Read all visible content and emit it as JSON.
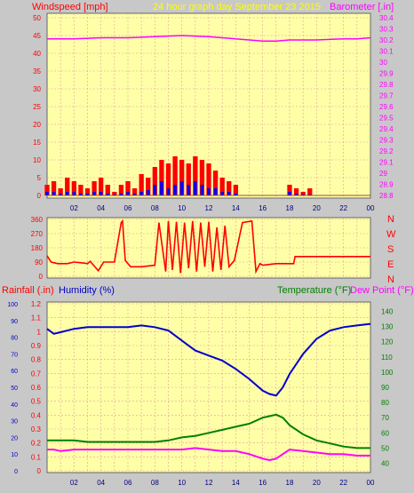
{
  "header": {
    "windspeed_label": "Windspeed [mph]",
    "title": "24 hour graph day   September 23 2015",
    "barometer_label": "Barometer [.in]"
  },
  "compass": [
    "N",
    "W",
    "S",
    "E",
    "N"
  ],
  "lower_header": {
    "rainfall_label": "Rainfall (.in)",
    "humidity_label": "Humidity (%)",
    "temperature_label": "Temperature (°F)",
    "dewpoint_label": "Dew Point (°F)"
  },
  "colors": {
    "background": "#c8c8c8",
    "plot_bg": "#ffffa8",
    "grid": "#e0a0a0",
    "wind": "#ff0000",
    "gust_avg": "#0000ff",
    "barometer": "#ff00ff",
    "humidity": "#0000cc",
    "temperature": "#008000",
    "dewpoint": "#ff00ff",
    "title": "#ffff00"
  },
  "chart_data": [
    {
      "type": "bar",
      "name": "wind",
      "x_ticks": [
        "02",
        "04",
        "06",
        "08",
        "10",
        "12",
        "14",
        "16",
        "18",
        "20",
        "22",
        "00"
      ],
      "y_ticks_left": [
        "0",
        "5",
        "10",
        "15",
        "20",
        "25",
        "30",
        "35",
        "40",
        "45",
        "50"
      ],
      "y_ticks_right": [
        "28.8",
        "28.9",
        "29",
        "29.1",
        "29.2",
        "29.3",
        "29.4",
        "29.5",
        "29.6",
        "29.7",
        "29.8",
        "29.9",
        "30",
        "30.1",
        "30.2",
        "30.3",
        "30.4"
      ],
      "ylim_left": [
        0,
        50
      ],
      "ylim_right": [
        28.8,
        30.4
      ],
      "series": [
        {
          "values_hour": [
            0,
            0.5,
            1,
            1.5,
            2,
            2.5,
            3,
            3.5,
            4,
            4.5,
            5,
            5.5,
            6,
            6.5,
            7,
            7.5,
            8,
            8.5,
            9,
            9.5,
            10,
            10.5,
            11,
            11.5,
            12,
            12.5,
            13,
            13.5,
            14,
            14.5,
            15,
            15.5,
            16,
            16.5,
            17,
            17.5,
            18,
            18.5,
            19,
            19.5,
            20,
            20.5,
            21,
            21.5,
            22,
            22.5,
            23,
            23.5,
            24
          ],
          "values": [
            3,
            4,
            2,
            5,
            4,
            3,
            2,
            4,
            5,
            3,
            1,
            3,
            4,
            2,
            6,
            5,
            8,
            10,
            9,
            11,
            10,
            9,
            11,
            10,
            9,
            7,
            5,
            4,
            3,
            0,
            0,
            0,
            0,
            0,
            0,
            0,
            3,
            2,
            1,
            2,
            0,
            0,
            0,
            0,
            0,
            0,
            0,
            0,
            0
          ]
        },
        {
          "values_hour": [
            0,
            0.5,
            1,
            1.5,
            2,
            2.5,
            3,
            3.5,
            4,
            4.5,
            5,
            5.5,
            6,
            6.5,
            7,
            7.5,
            8,
            8.5,
            9,
            9.5,
            10,
            10.5,
            11,
            11.5,
            12,
            12.5,
            13,
            13.5,
            14,
            14.5,
            15,
            15.5,
            16,
            16.5,
            17,
            17.5,
            18,
            18.5,
            19,
            19.5,
            20,
            20.5,
            21,
            21.5,
            22,
            22.5,
            23,
            23.5,
            24
          ],
          "values": [
            1,
            1,
            0.5,
            1,
            1,
            0.5,
            0.5,
            1,
            1,
            0.5,
            0.3,
            0.5,
            1,
            0.5,
            1,
            1.5,
            3,
            4,
            2,
            3,
            4,
            3,
            4,
            3,
            2,
            2,
            1,
            1,
            0.5,
            0,
            0,
            0,
            0,
            0,
            0,
            0,
            1,
            0.5,
            0.3,
            0.3,
            0,
            0,
            0,
            0,
            0,
            0,
            0,
            0,
            0
          ]
        },
        {
          "values_hour": [
            0,
            2,
            4,
            6,
            8,
            10,
            12,
            14,
            15,
            16,
            17,
            18,
            19,
            20,
            22,
            23,
            24
          ],
          "values": [
            30.21,
            30.21,
            30.22,
            30.22,
            30.23,
            30.24,
            30.23,
            30.21,
            30.2,
            30.19,
            30.19,
            30.2,
            30.2,
            30.2,
            30.21,
            30.21,
            30.22
          ]
        }
      ]
    },
    {
      "type": "line",
      "name": "wind_direction",
      "y_ticks": [
        "0",
        "90",
        "180",
        "270",
        "360"
      ],
      "ylim": [
        0,
        360
      ],
      "x_hour": [
        0,
        0.3,
        0.8,
        1.5,
        2,
        2.6,
        3,
        3.2,
        3.8,
        4.2,
        5,
        5.5,
        5.6,
        5.8,
        6.2,
        7,
        8,
        8.3,
        8.8,
        9,
        9.3,
        9.6,
        9.9,
        10.2,
        10.5,
        10.8,
        11.1,
        11.4,
        11.7,
        12,
        12.3,
        12.6,
        12.9,
        13.2,
        13.5,
        13.9,
        14.5,
        15.2,
        15.5,
        15.8,
        16,
        17,
        18.3,
        18.4,
        19,
        20,
        22,
        24
      ],
      "values": [
        130,
        90,
        80,
        80,
        90,
        85,
        80,
        95,
        35,
        90,
        90,
        340,
        350,
        100,
        60,
        60,
        70,
        340,
        30,
        350,
        40,
        345,
        20,
        340,
        50,
        350,
        30,
        340,
        60,
        345,
        30,
        310,
        40,
        320,
        60,
        100,
        340,
        350,
        30,
        80,
        70,
        80,
        80,
        125,
        125,
        125,
        125,
        125
      ]
    },
    {
      "type": "line",
      "name": "lower",
      "y_ticks_rain": [
        "0",
        "0.1",
        "0.2",
        "0.3",
        "0.4",
        "0.5",
        "0.6",
        "0.7",
        "0.8",
        "0.9",
        "1",
        "1.1",
        "1.2"
      ],
      "y_ticks_humidity": [
        "0",
        "10",
        "20",
        "30",
        "40",
        "50",
        "60",
        "70",
        "80",
        "90",
        "100"
      ],
      "y_ticks_temp": [
        "40",
        "50",
        "60",
        "70",
        "80",
        "90",
        "100",
        "110",
        "120",
        "130",
        "140"
      ],
      "ylim_rain": [
        0,
        1.2
      ],
      "ylim_humidity": [
        0,
        100
      ],
      "ylim_temp": [
        35,
        145
      ],
      "x_hour": [
        0,
        0.5,
        1,
        2,
        3,
        4,
        5,
        6,
        7,
        8,
        9,
        10,
        11,
        12,
        13,
        14,
        15,
        16,
        16.5,
        17,
        17.5,
        18,
        19,
        20,
        21,
        22,
        23,
        24
      ],
      "series": [
        {
          "name": "Humidity",
          "values": [
            85,
            82,
            83,
            85,
            86,
            86,
            86,
            86,
            87,
            86,
            84,
            78,
            72,
            69,
            66,
            61,
            55,
            48,
            46,
            45,
            50,
            58,
            70,
            79,
            84,
            86,
            87,
            88
          ]
        },
        {
          "name": "Temperature",
          "values": [
            55,
            55,
            55,
            55,
            54,
            54,
            54,
            54,
            54,
            54,
            55,
            57,
            58,
            60,
            62,
            64,
            66,
            70,
            71,
            72,
            70,
            65,
            59,
            55,
            53,
            51,
            50,
            50
          ]
        },
        {
          "name": "Dew Point",
          "values": [
            49,
            49,
            48,
            49,
            49,
            49,
            49,
            49,
            49,
            49,
            49,
            49,
            50,
            49,
            48,
            48,
            46,
            43,
            42,
            43,
            46,
            49,
            48,
            47,
            46,
            46,
            45,
            45
          ]
        }
      ]
    }
  ]
}
